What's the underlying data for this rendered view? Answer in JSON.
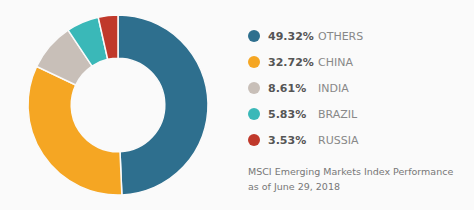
{
  "chart_data": {
    "type": "pie",
    "title": "MSCI Emerging Markets Index Performance",
    "subtitle": "as of June 29, 2018",
    "categories": [
      "OTHERS",
      "CHINA",
      "INDIA",
      "BRAZIL",
      "RUSSIA"
    ],
    "values": [
      49.32,
      32.72,
      8.61,
      5.83,
      3.53
    ],
    "value_labels": [
      "49.32%",
      "32.72%",
      "8.61%",
      "5.83%",
      "3.53%"
    ],
    "colors": [
      "#2e6f8e",
      "#f5a623",
      "#c8bfb8",
      "#3ab8b8",
      "#c0392b"
    ],
    "legend": "right"
  }
}
